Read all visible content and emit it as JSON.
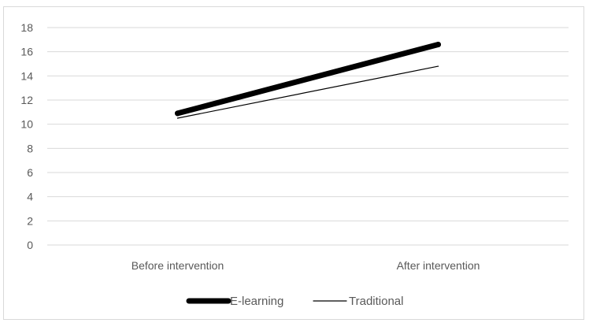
{
  "chart_data": {
    "type": "line",
    "title": "",
    "xlabel": "",
    "ylabel": "",
    "categories": [
      "Before intervention",
      "After intervention"
    ],
    "ylim": [
      0,
      18
    ],
    "y_ticks": [
      0,
      2,
      4,
      6,
      8,
      10,
      12,
      14,
      16,
      18
    ],
    "grid": true,
    "legend_position": "bottom",
    "series": [
      {
        "name": "E-learning",
        "values": [
          10.9,
          16.6
        ],
        "color": "#000000"
      },
      {
        "name": "Traditional",
        "values": [
          10.5,
          14.8
        ],
        "color": "#000000"
      }
    ]
  }
}
